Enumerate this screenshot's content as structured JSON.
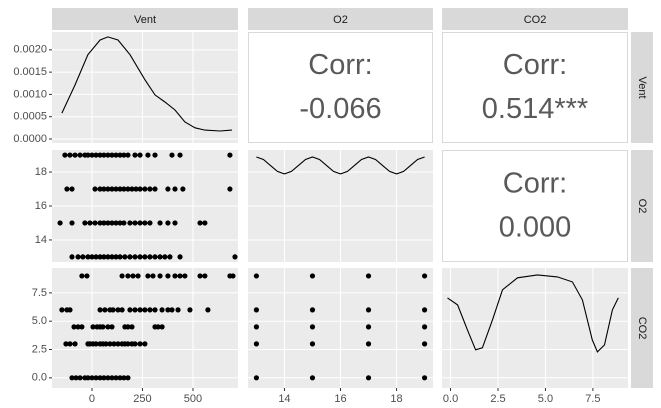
{
  "strips_top": [
    "Vent",
    "O2",
    "CO2"
  ],
  "strips_right": [
    "Vent",
    "O2",
    "CO2"
  ],
  "chart_data": [
    {
      "type": "line",
      "x": [
        -149,
        -84,
        -20,
        40,
        79,
        129,
        188,
        262,
        312,
        361,
        411,
        460,
        510,
        559,
        634,
        693
      ],
      "y": [
        0.00058,
        0.00121,
        0.00189,
        0.00222,
        0.00229,
        0.00222,
        0.00189,
        0.00133,
        0.00099,
        0.00083,
        0.00065,
        0.00038,
        0.00025,
        0.0002,
        0.00018,
        0.0002
      ],
      "xlim": [
        -198,
        723
      ],
      "ylim": [
        -9e-05,
        0.0024
      ],
      "yticks": [
        {
          "value": 0,
          "label": "0.0000"
        },
        {
          "value": 0.0005,
          "label": "0.0005"
        },
        {
          "value": 0.001,
          "label": "0.0010"
        },
        {
          "value": 0.0015,
          "label": "0.0015"
        },
        {
          "value": 0.002,
          "label": "0.0020"
        }
      ]
    },
    {
      "type": "text",
      "lines": [
        "Corr:",
        "-0.066"
      ]
    },
    {
      "type": "text",
      "lines": [
        "Corr:",
        "0.514***"
      ]
    },
    {
      "type": "scatter",
      "x": [
        -134,
        -109,
        -84,
        -59,
        -35,
        -20,
        0,
        20,
        40,
        59,
        79,
        99,
        119,
        139,
        158,
        178,
        213,
        238,
        277,
        312,
        396,
        436,
        683,
        -124,
        -99,
        15,
        40,
        59,
        79,
        99,
        119,
        139,
        158,
        178,
        198,
        218,
        238,
        262,
        287,
        312,
        376,
        411,
        450,
        683,
        -158,
        -99,
        -35,
        -10,
        15,
        40,
        59,
        79,
        99,
        119,
        139,
        158,
        188,
        213,
        238,
        262,
        287,
        337,
        376,
        411,
        535,
        559,
        -99,
        -69,
        -45,
        -20,
        0,
        20,
        40,
        59,
        79,
        99,
        119,
        139,
        163,
        188,
        213,
        238,
        262,
        287,
        312,
        337,
        361,
        386,
        436,
        708
      ],
      "y": [
        19,
        19,
        19,
        19,
        19,
        19,
        19,
        19,
        19,
        19,
        19,
        19,
        19,
        19,
        19,
        19,
        19,
        19,
        19,
        19,
        19,
        19,
        19,
        17,
        17,
        17,
        17,
        17,
        17,
        17,
        17,
        17,
        17,
        17,
        17,
        17,
        17,
        17,
        17,
        17,
        17,
        17,
        17,
        17,
        15,
        15,
        15,
        15,
        15,
        15,
        15,
        15,
        15,
        15,
        15,
        15,
        15,
        15,
        15,
        15,
        15,
        15,
        15,
        15,
        15,
        15,
        13,
        13,
        13,
        13,
        13,
        13,
        13,
        13,
        13,
        13,
        13,
        13,
        13,
        13,
        13,
        13,
        13,
        13,
        13,
        13,
        13,
        13,
        13,
        13
      ],
      "xlim": [
        -198,
        723
      ],
      "ylim": [
        12.7,
        19.3
      ],
      "yticks": [
        14,
        16,
        18
      ]
    },
    {
      "type": "line",
      "x": [
        13,
        13.25,
        13.5,
        13.75,
        14,
        14.25,
        14.5,
        14.75,
        15,
        15.25,
        15.5,
        15.75,
        16,
        16.25,
        16.5,
        16.75,
        17,
        17.25,
        17.5,
        17.75,
        18,
        18.25,
        18.5,
        18.75,
        19
      ],
      "y": [
        18.89,
        18.74,
        18.39,
        18.04,
        17.89,
        18.04,
        18.39,
        18.74,
        18.89,
        18.74,
        18.39,
        18.04,
        17.89,
        18.04,
        18.39,
        18.74,
        18.89,
        18.74,
        18.39,
        18.04,
        17.89,
        18.04,
        18.39,
        18.74,
        18.89
      ],
      "xlim": [
        12.7,
        19.3
      ],
      "ylim": [
        12.7,
        19.3
      ]
    },
    {
      "type": "text",
      "lines": [
        "Corr:",
        "0.000"
      ]
    },
    {
      "type": "scatter",
      "x": [
        -50,
        -25,
        149,
        178,
        203,
        228,
        277,
        302,
        337,
        376,
        411,
        436,
        460,
        535,
        559,
        683,
        698,
        -149,
        -124,
        -109,
        40,
        64,
        89,
        104,
        129,
        149,
        188,
        213,
        238,
        262,
        287,
        312,
        347,
        376,
        396,
        426,
        485,
        574,
        -89,
        -69,
        -50,
        5,
        25,
        40,
        54,
        79,
        99,
        163,
        178,
        198,
        312,
        327,
        347,
        -129,
        -109,
        -84,
        -20,
        -10,
        5,
        20,
        40,
        54,
        69,
        89,
        109,
        129,
        149,
        163,
        178,
        198,
        213,
        238,
        262,
        -99,
        -79,
        -59,
        -35,
        -20,
        0,
        20,
        40,
        59,
        79,
        99,
        119,
        139,
        158,
        178
      ],
      "y": [
        9,
        9,
        9,
        9,
        9,
        9,
        9,
        9,
        9,
        9,
        9,
        9,
        9,
        9,
        9,
        9,
        9,
        6,
        6,
        6,
        6,
        6,
        6,
        6,
        6,
        6,
        6,
        6,
        6,
        6,
        6,
        6,
        6,
        6,
        6,
        6,
        6,
        6,
        4.5,
        4.5,
        4.5,
        4.5,
        4.5,
        4.5,
        4.5,
        4.5,
        4.5,
        4.5,
        4.5,
        4.5,
        4.5,
        4.5,
        4.5,
        3,
        3,
        3,
        3,
        3,
        3,
        3,
        3,
        3,
        3,
        3,
        3,
        3,
        3,
        3,
        3,
        3,
        3,
        3,
        3,
        0,
        0,
        0,
        0,
        0,
        0,
        0,
        0,
        0,
        0,
        0,
        0,
        0,
        0,
        0
      ],
      "xlim": [
        -198,
        723
      ],
      "ylim": [
        -0.9,
        9.7
      ],
      "xticks": [
        0,
        250,
        500
      ],
      "yticks": [
        {
          "value": 0,
          "label": "0.0"
        },
        {
          "value": 2.5,
          "label": "2.5"
        },
        {
          "value": 5,
          "label": "5.0"
        },
        {
          "value": 7.5,
          "label": "7.5"
        }
      ]
    },
    {
      "type": "scatter",
      "x": [
        13,
        13,
        13,
        13,
        13,
        15,
        15,
        15,
        15,
        15,
        17,
        17,
        17,
        17,
        17,
        19,
        19,
        19,
        19,
        19
      ],
      "y": [
        0,
        3,
        4.5,
        6,
        9,
        0,
        3,
        4.5,
        6,
        9,
        0,
        3,
        4.5,
        6,
        9,
        0,
        3,
        4.5,
        6,
        9
      ],
      "xlim": [
        12.7,
        19.3
      ],
      "ylim": [
        -0.9,
        9.7
      ],
      "xticks": [
        14,
        16,
        18
      ]
    },
    {
      "type": "line",
      "x": [
        -0.16,
        0.37,
        0.89,
        1.32,
        1.68,
        2.21,
        2.74,
        3.53,
        4.58,
        5.63,
        6.42,
        6.95,
        7.47,
        7.74,
        8.11,
        8.53,
        8.84
      ],
      "y": [
        7.06,
        6.44,
        4.24,
        2.47,
        2.65,
        5.12,
        7.77,
        8.83,
        9.09,
        8.91,
        8.47,
        6.88,
        3.35,
        2.29,
        2.91,
        6.0,
        7.06
      ],
      "xlim": [
        -0.45,
        9.35
      ],
      "ylim": [
        -0.9,
        9.7
      ],
      "xticks": [
        {
          "value": 0,
          "label": "0.0"
        },
        {
          "value": 2.5,
          "label": "2.5"
        },
        {
          "value": 5,
          "label": "5.0"
        },
        {
          "value": 7.5,
          "label": "7.5"
        }
      ]
    }
  ]
}
